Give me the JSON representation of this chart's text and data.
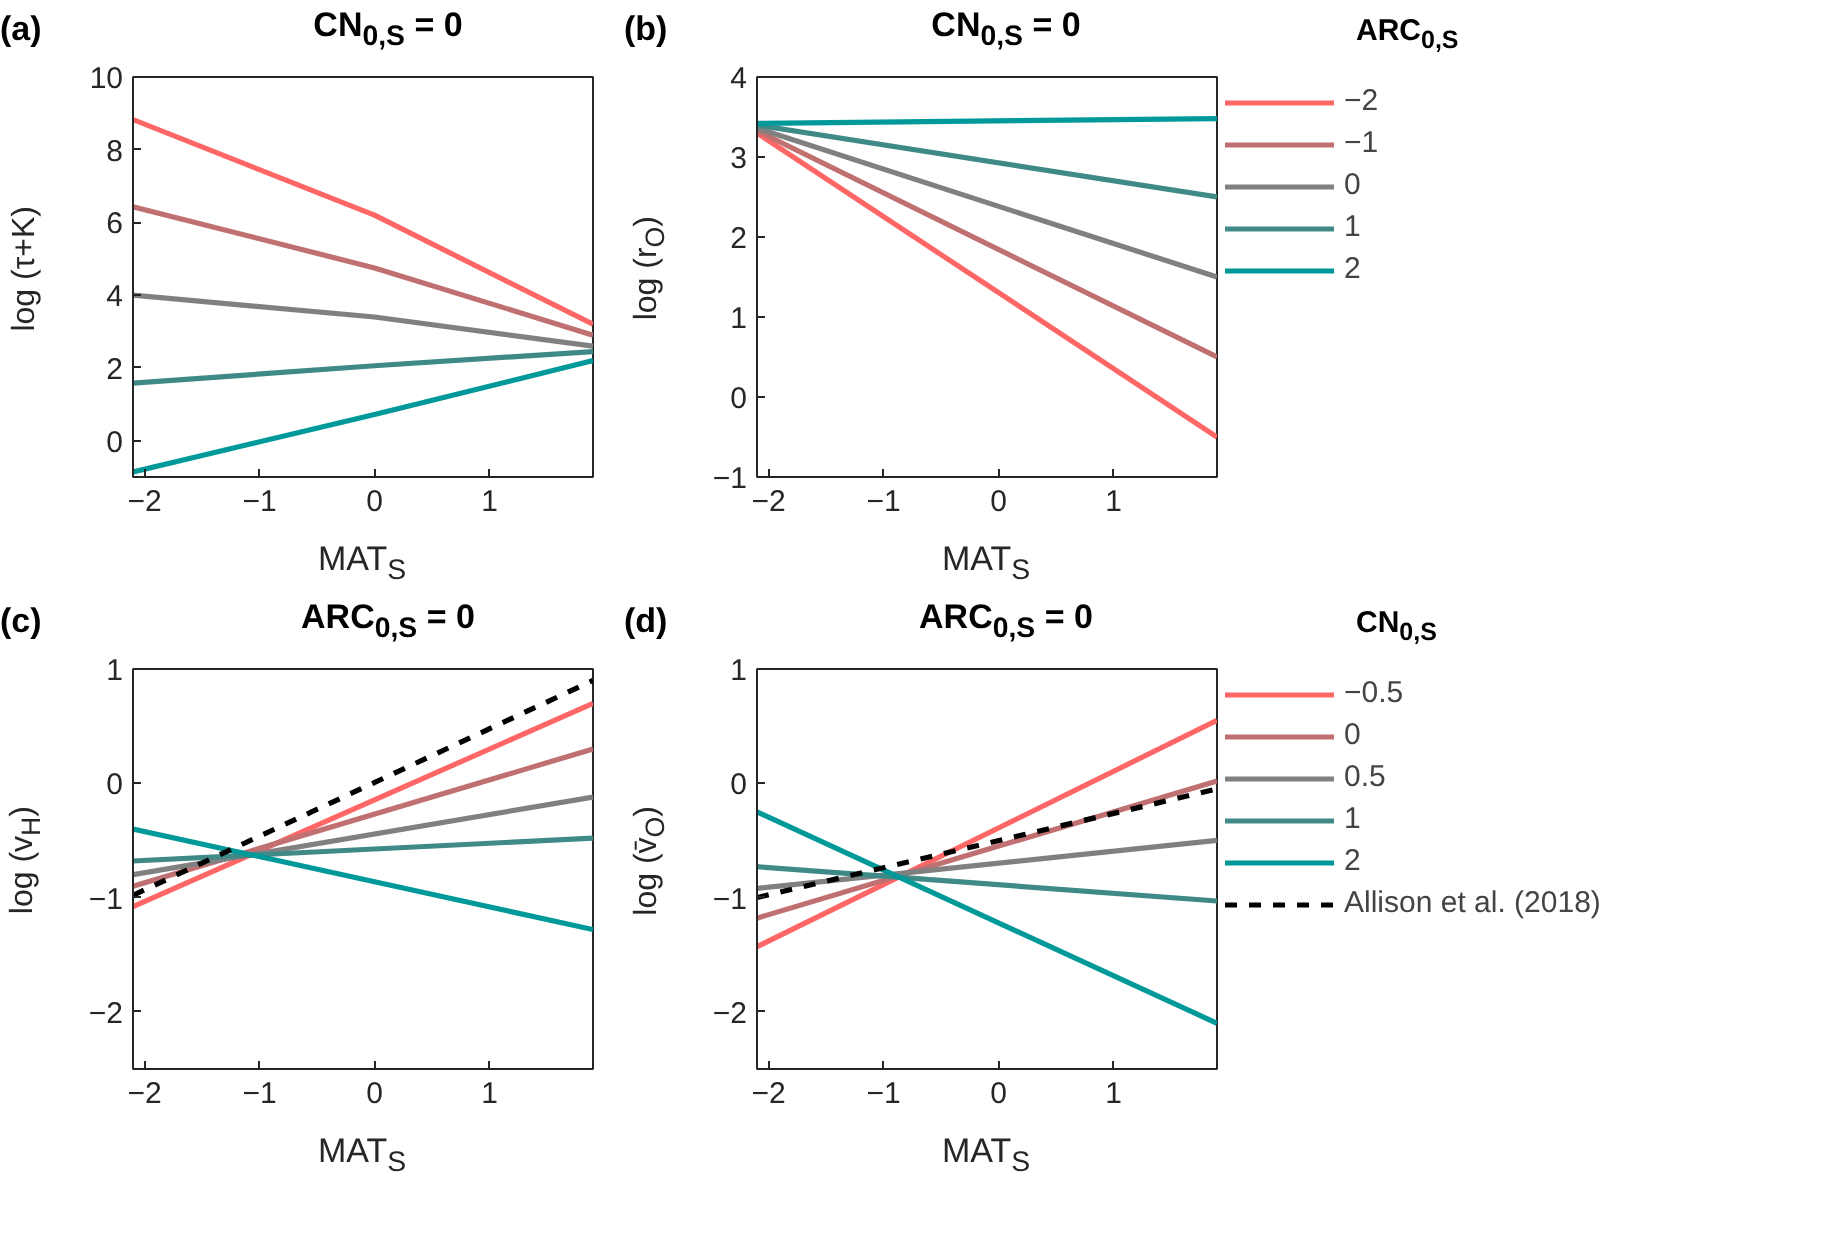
{
  "chart_data": [
    {
      "type": "line",
      "title": "CN$_{0,S}$ = 0",
      "xlabel": "MAT$_{S}$",
      "ylabel": "log (τ+K)",
      "annotations": [
        "(a)"
      ],
      "xlim": [
        -2.1,
        1.9
      ],
      "ylim": [
        -1,
        10
      ],
      "xticks": [
        -2,
        -1,
        0,
        1
      ],
      "yticks": [
        0,
        2,
        4,
        6,
        8,
        10
      ],
      "series": [
        {
          "color": "#ff6666",
          "x": [
            -2.1,
            0,
            1.9
          ],
          "values": [
            8.83,
            6.2,
            3.2
          ]
        },
        {
          "color": "#c07070",
          "x": [
            -2.1,
            0,
            1.9
          ],
          "values": [
            6.43,
            4.75,
            2.9
          ]
        },
        {
          "color": "#808080",
          "x": [
            -2.1,
            0,
            1.9
          ],
          "values": [
            4.0,
            3.4,
            2.6
          ]
        },
        {
          "color": "#3f8a87",
          "x": [
            -2.1,
            0,
            1.9
          ],
          "values": [
            1.58,
            2.06,
            2.45
          ]
        },
        {
          "color": "#009999",
          "x": [
            -2.1,
            0,
            1.9
          ],
          "values": [
            -0.86,
            0.72,
            2.2
          ]
        }
      ]
    },
    {
      "type": "line",
      "title": "CN$_{0,S}$ = 0",
      "xlabel": "MAT$_{S}$",
      "ylabel": "log (r$_{O}$)",
      "annotations": [
        "(b)"
      ],
      "legend": "right",
      "legend_title": "ARC$_{0,S}$",
      "xlim": [
        -2.1,
        1.9
      ],
      "ylim": [
        -1,
        4
      ],
      "xticks": [
        -2,
        -1,
        0,
        1
      ],
      "yticks": [
        -1,
        0,
        1,
        2,
        3,
        4
      ],
      "series": [
        {
          "name": "−2",
          "color": "#ff6666",
          "x": [
            -2.1,
            1.9
          ],
          "values": [
            3.3,
            -0.5
          ]
        },
        {
          "name": "−1",
          "color": "#c07070",
          "x": [
            -2.1,
            1.9
          ],
          "values": [
            3.33,
            0.5
          ]
        },
        {
          "name": "0",
          "color": "#808080",
          "x": [
            -2.1,
            1.9
          ],
          "values": [
            3.36,
            1.5
          ]
        },
        {
          "name": "1",
          "color": "#3f8a87",
          "x": [
            -2.1,
            1.9
          ],
          "values": [
            3.4,
            2.5
          ]
        },
        {
          "name": "2",
          "color": "#009999",
          "x": [
            -2.1,
            1.9
          ],
          "values": [
            3.42,
            3.48
          ]
        }
      ]
    },
    {
      "type": "line",
      "title": "ARC$_{0,S}$ = 0",
      "xlabel": "MAT$_{S}$",
      "ylabel": "log (v$_{H}$)",
      "annotations": [
        "(c)"
      ],
      "xlim": [
        -2.1,
        1.9
      ],
      "ylim": [
        -2.5,
        1
      ],
      "xticks": [
        -2,
        -1,
        0,
        1
      ],
      "yticks": [
        -2,
        -1,
        0,
        1
      ],
      "series": [
        {
          "color": "#ff6666",
          "x": [
            -2.1,
            1.9
          ],
          "values": [
            -1.08,
            0.7
          ]
        },
        {
          "color": "#c07070",
          "x": [
            -2.1,
            1.9
          ],
          "values": [
            -0.9,
            0.3
          ]
        },
        {
          "color": "#808080",
          "x": [
            -2.1,
            1.9
          ],
          "values": [
            -0.8,
            -0.12
          ]
        },
        {
          "color": "#3f8a87",
          "x": [
            -2.1,
            1.9
          ],
          "values": [
            -0.68,
            -0.48
          ]
        },
        {
          "color": "#009999",
          "x": [
            -2.1,
            1.9
          ],
          "values": [
            -0.4,
            -1.28
          ]
        },
        {
          "color": "#000000",
          "line_style": "dashed",
          "x": [
            -2.1,
            1.9
          ],
          "values": [
            -0.98,
            0.9
          ]
        }
      ]
    },
    {
      "type": "line",
      "title": "ARC$_{0,S}$ = 0",
      "xlabel": "MAT$_{S}$",
      "ylabel": "log (v̄$_{O}$)",
      "annotations": [
        "(d)"
      ],
      "legend": "right",
      "legend_title": "CN$_{0,S}$",
      "xlim": [
        -2.1,
        1.9
      ],
      "ylim": [
        -2.5,
        1
      ],
      "xticks": [
        -2,
        -1,
        0,
        1
      ],
      "yticks": [
        -2,
        -1,
        0,
        1
      ],
      "series": [
        {
          "name": "−0.5",
          "color": "#ff6666",
          "x": [
            -2.1,
            1.9
          ],
          "values": [
            -1.43,
            0.55
          ]
        },
        {
          "name": "0",
          "color": "#c07070",
          "x": [
            -2.1,
            1.9
          ],
          "values": [
            -1.18,
            0.02
          ]
        },
        {
          "name": "0.5",
          "color": "#808080",
          "x": [
            -2.1,
            1.9
          ],
          "values": [
            -0.92,
            -0.5
          ]
        },
        {
          "name": "1",
          "color": "#3f8a87",
          "x": [
            -2.1,
            1.9
          ],
          "values": [
            -0.73,
            -1.03
          ]
        },
        {
          "name": "2",
          "color": "#009999",
          "x": [
            -2.1,
            1.9
          ],
          "values": [
            -0.25,
            -2.1
          ]
        },
        {
          "name": "Allison et al. (2018)",
          "color": "#000000",
          "line_style": "dashed",
          "x": [
            -2.1,
            1.9
          ],
          "values": [
            -1.0,
            -0.05
          ]
        }
      ]
    }
  ]
}
